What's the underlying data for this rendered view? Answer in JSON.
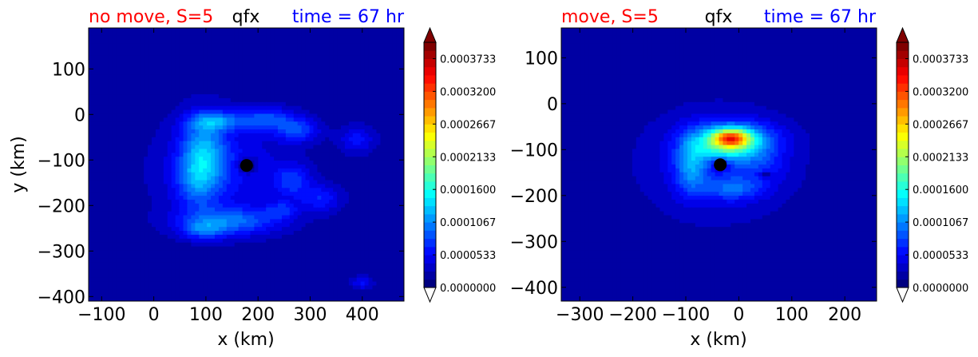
{
  "chart_data": [
    {
      "type": "contour",
      "variable": "qfx",
      "title_left": "no move, S=5",
      "title_center": "qfx",
      "title_right": "time = 67 hr",
      "title_left_color": "#ff0000",
      "title_right_color": "#0000ff",
      "xlabel": "x (km)",
      "ylabel": "y (km)",
      "xlim": [
        -125,
        480
      ],
      "ylim": [
        -410,
        190
      ],
      "xticks": [
        -100,
        0,
        100,
        200,
        300,
        400
      ],
      "xtick_labels": [
        "−100",
        "0",
        "100",
        "200",
        "300",
        "400"
      ],
      "yticks": [
        100,
        0,
        -100,
        -200,
        -300,
        -400
      ],
      "ytick_labels": [
        "100",
        "0",
        "−100",
        "−200",
        "−300",
        "−400"
      ],
      "center_marker": {
        "x": 178,
        "y": -112
      },
      "colorbar": {
        "min": 0.0,
        "max": 0.0004,
        "levels": 30,
        "extend": "both",
        "tick_values": [
          0.0,
          5.33e-05,
          0.0001067,
          0.00016,
          0.0002133,
          0.0002667,
          0.00032,
          0.0003733
        ],
        "tick_labels": [
          "0.0000000",
          "0.0000533",
          "0.0001067",
          "0.0001600",
          "0.0002133",
          "0.0002667",
          "0.0003200",
          "0.0003733"
        ]
      },
      "features": [
        {
          "x": 130,
          "y": -120,
          "sx": 120,
          "sy": 110,
          "v": 4e-05
        },
        {
          "x": 95,
          "y": -85,
          "sx": 42,
          "sy": 80,
          "v": 8e-05
        },
        {
          "x": 80,
          "y": -150,
          "sx": 38,
          "sy": 60,
          "v": 4e-05
        },
        {
          "x": 118,
          "y": -15,
          "sx": 50,
          "sy": 20,
          "v": 7e-05
        },
        {
          "x": 215,
          "y": -10,
          "sx": 55,
          "sy": 25,
          "v": 6e-05
        },
        {
          "x": 275,
          "y": -35,
          "sx": 40,
          "sy": 25,
          "v": 6e-05
        },
        {
          "x": 145,
          "y": -235,
          "sx": 95,
          "sy": 30,
          "v": 7e-05
        },
        {
          "x": 95,
          "y": -255,
          "sx": 40,
          "sy": 20,
          "v": 5e-05
        },
        {
          "x": 265,
          "y": -145,
          "sx": 35,
          "sy": 35,
          "v": 5e-05
        },
        {
          "x": 320,
          "y": -185,
          "sx": 40,
          "sy": 30,
          "v": 4.5e-05
        },
        {
          "x": 245,
          "y": -210,
          "sx": 30,
          "sy": 20,
          "v": 4e-05
        },
        {
          "x": 390,
          "y": -55,
          "sx": 35,
          "sy": 30,
          "v": 4e-05
        },
        {
          "x": 178,
          "y": -112,
          "sx": 16,
          "sy": 16,
          "v": -6e-05
        },
        {
          "x": 400,
          "y": -370,
          "sx": 20,
          "sy": 14,
          "v": 4e-05
        }
      ]
    },
    {
      "type": "contour",
      "variable": "qfx",
      "title_left": "move, S=5",
      "title_center": "qfx",
      "title_right": "time = 67 hr",
      "title_left_color": "#ff0000",
      "title_right_color": "#0000ff",
      "xlabel": "x (km)",
      "ylabel": "",
      "xlim": [
        -335,
        260
      ],
      "ylim": [
        -430,
        165
      ],
      "xticks": [
        -300,
        -200,
        -100,
        0,
        100,
        200
      ],
      "xtick_labels": [
        "−300",
        "−200",
        "−100",
        "0",
        "100",
        "200"
      ],
      "yticks": [
        100,
        0,
        -100,
        -200,
        -300,
        -400
      ],
      "ytick_labels": [
        "100",
        "0",
        "−100",
        "−200",
        "−300",
        "−400"
      ],
      "center_marker": {
        "x": -35,
        "y": -133
      },
      "colorbar": {
        "min": 0.0,
        "max": 0.0004,
        "levels": 30,
        "extend": "both",
        "tick_values": [
          0.0,
          5.33e-05,
          0.0001067,
          0.00016,
          0.0002133,
          0.0002667,
          0.00032,
          0.0003733
        ],
        "tick_labels": [
          "0.0000000",
          "0.0000533",
          "0.0001067",
          "0.0001600",
          "0.0002133",
          "0.0002667",
          "0.0003200",
          "0.0003733"
        ]
      },
      "features": [
        {
          "x": -40,
          "y": -130,
          "sx": 130,
          "sy": 110,
          "v": 4e-05
        },
        {
          "x": -10,
          "y": -75,
          "sx": 75,
          "sy": 35,
          "v": 0.00011
        },
        {
          "x": -15,
          "y": -75,
          "sx": 35,
          "sy": 18,
          "v": 0.00017
        },
        {
          "x": -25,
          "y": -100,
          "sx": 55,
          "sy": 25,
          "v": 6e-05
        },
        {
          "x": -90,
          "y": -135,
          "sx": 30,
          "sy": 60,
          "v": 7e-05
        },
        {
          "x": -10,
          "y": -185,
          "sx": 55,
          "sy": 25,
          "v": 5e-05
        },
        {
          "x": 40,
          "y": -130,
          "sx": 50,
          "sy": 40,
          "v": 3e-05
        },
        {
          "x": 50,
          "y": -155,
          "sx": 12,
          "sy": 8,
          "v": -5e-05
        },
        {
          "x": -35,
          "y": -133,
          "sx": 14,
          "sy": 14,
          "v": -5e-05
        }
      ]
    }
  ]
}
